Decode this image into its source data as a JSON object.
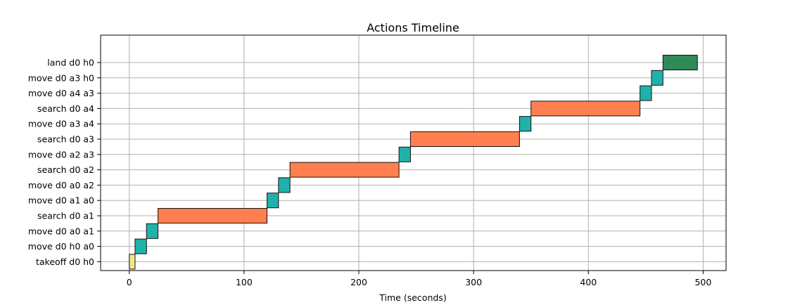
{
  "chart_data": {
    "type": "bar",
    "orientation": "horizontal-gantt",
    "title": "Actions Timeline",
    "xlabel": "Time (seconds)",
    "ylabel": "",
    "xlim": [
      -25,
      520
    ],
    "xticks": [
      0,
      100,
      200,
      300,
      400,
      500
    ],
    "grid": true,
    "colors": {
      "takeoff": "#f0e68c",
      "move": "#20b2aa",
      "search": "#ff7f50",
      "land": "#2e8b57"
    },
    "tasks": [
      {
        "label": "takeoff d0 h0",
        "kind": "takeoff",
        "start": 0,
        "end": 5
      },
      {
        "label": "move d0 h0 a0",
        "kind": "move",
        "start": 5,
        "end": 15
      },
      {
        "label": "move d0 a0 a1",
        "kind": "move",
        "start": 15,
        "end": 25
      },
      {
        "label": "search d0 a1",
        "kind": "search",
        "start": 25,
        "end": 120
      },
      {
        "label": "move d0 a1 a0",
        "kind": "move",
        "start": 120,
        "end": 130
      },
      {
        "label": "move d0 a0 a2",
        "kind": "move",
        "start": 130,
        "end": 140
      },
      {
        "label": "search d0 a2",
        "kind": "search",
        "start": 140,
        "end": 235
      },
      {
        "label": "move d0 a2 a3",
        "kind": "move",
        "start": 235,
        "end": 245
      },
      {
        "label": "search d0 a3",
        "kind": "search",
        "start": 245,
        "end": 340
      },
      {
        "label": "move d0 a3 a4",
        "kind": "move",
        "start": 340,
        "end": 350
      },
      {
        "label": "search d0 a4",
        "kind": "search",
        "start": 350,
        "end": 445
      },
      {
        "label": "move d0 a4 a3",
        "kind": "move",
        "start": 445,
        "end": 455
      },
      {
        "label": "move d0 a3 h0",
        "kind": "move",
        "start": 455,
        "end": 465
      },
      {
        "label": "land d0 h0",
        "kind": "land",
        "start": 465,
        "end": 495
      }
    ]
  }
}
